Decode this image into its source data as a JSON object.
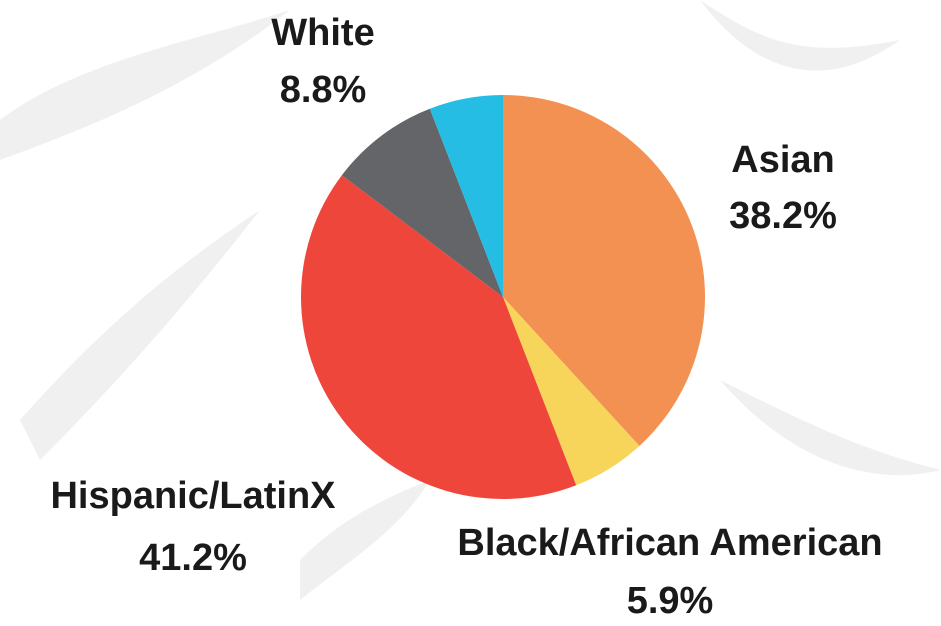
{
  "chart_data": {
    "type": "pie",
    "categories": [
      "Asian",
      "Black/African American",
      "Hispanic/LatinX",
      "White",
      null
    ],
    "values": [
      38.2,
      5.9,
      41.2,
      8.8,
      5.9
    ],
    "value_labels": [
      "38.2%",
      "5.9%",
      "41.2%",
      "8.8%",
      null
    ],
    "colors": [
      "#f39153",
      "#f7d55a",
      "#ef463c",
      "#646569",
      "#25bde3"
    ]
  }
}
